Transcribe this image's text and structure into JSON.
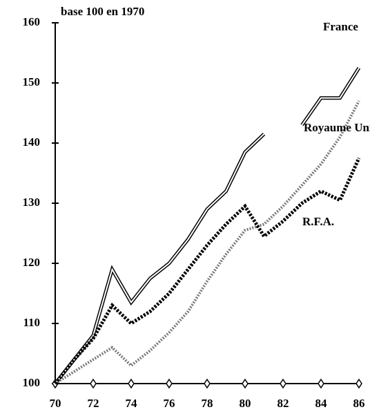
{
  "chart_data": {
    "type": "line",
    "subtitle": "base 100 en 1970",
    "x": [
      70,
      71,
      72,
      73,
      74,
      75,
      76,
      77,
      78,
      79,
      80,
      81,
      82,
      83,
      84,
      85,
      86
    ],
    "series": [
      {
        "name": "France",
        "color": "#000000",
        "style": "double",
        "values": [
          100,
          104,
          108,
          119,
          113.5,
          117.5,
          120,
          124,
          129,
          132,
          138.5,
          141.5,
          null,
          143,
          147.5,
          147.5,
          152.5
        ]
      },
      {
        "name": "Royaume Uni",
        "color": "#777777",
        "style": "dotted",
        "values": [
          100,
          102,
          104,
          106,
          103,
          105.5,
          108.5,
          112,
          117,
          121.5,
          125.5,
          126.5,
          129.5,
          133,
          136.5,
          141,
          147
        ]
      },
      {
        "name": "R.F.A.",
        "color": "#000000",
        "style": "dashed",
        "values": [
          100,
          104,
          107.5,
          113,
          110,
          112,
          115,
          119,
          123,
          126.5,
          129.5,
          124.5,
          127,
          130,
          132,
          130.5,
          137.5
        ]
      }
    ],
    "xlim": [
      70,
      86
    ],
    "xticks": [
      70,
      72,
      74,
      76,
      78,
      80,
      82,
      84,
      86
    ],
    "ylim": [
      100,
      160
    ],
    "yticks": [
      100,
      110,
      120,
      130,
      140,
      150,
      160
    ],
    "grid": false
  }
}
